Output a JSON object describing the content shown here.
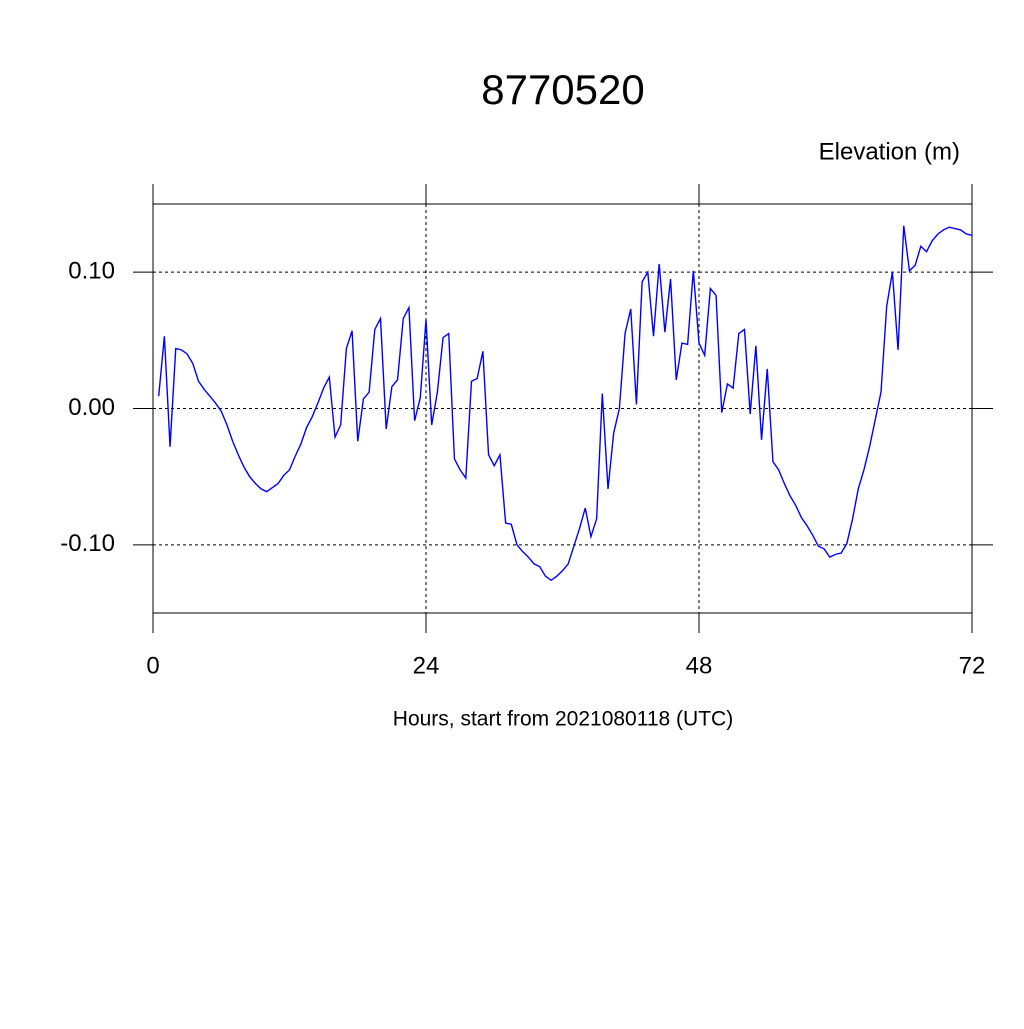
{
  "chart_data": {
    "type": "line",
    "title": "8770520",
    "y_label": "Elevation (m)",
    "x_label": "Hours, start from 2021080118 (UTC)",
    "xlim": [
      0,
      72
    ],
    "xticks": [
      0,
      24,
      48,
      72
    ],
    "ylim": [
      -0.15,
      0.15
    ],
    "yticks": [
      {
        "value": -0.1,
        "label": "-0.10"
      },
      {
        "value": 0,
        "label": "0.00"
      },
      {
        "value": 0.1,
        "label": "0.10"
      }
    ],
    "grid": true,
    "x": [
      0.5,
      1,
      1.5,
      2,
      2.5,
      3,
      3.5,
      4,
      4.5,
      5,
      5.5,
      6,
      6.5,
      7,
      7.5,
      8,
      8.5,
      9,
      9.5,
      10,
      10.5,
      11,
      11.5,
      12,
      12.5,
      13,
      13.5,
      14,
      14.5,
      15,
      15.5,
      16,
      16.5,
      17,
      17.5,
      18,
      18.5,
      19,
      19.5,
      20,
      20.5,
      21,
      21.5,
      22,
      22.5,
      23,
      23.5,
      24,
      24.5,
      25,
      25.5,
      26,
      26.5,
      27,
      27.5,
      28,
      28.5,
      29,
      29.5,
      30,
      30.5,
      31,
      31.5,
      32,
      32.5,
      33,
      33.5,
      34,
      34.5,
      35,
      35.5,
      36,
      36.5,
      37,
      37.5,
      38,
      38.5,
      39,
      39.5,
      40,
      40.5,
      41,
      41.5,
      42,
      42.5,
      43,
      43.5,
      44,
      44.5,
      45,
      45.5,
      46,
      46.5,
      47,
      47.5,
      48,
      48.5,
      49,
      49.5,
      50,
      50.5,
      51,
      51.5,
      52,
      52.5,
      53,
      53.5,
      54,
      54.5,
      55,
      55.5,
      56,
      56.5,
      57,
      57.5,
      58,
      58.5,
      59,
      59.5,
      60,
      60.5,
      61,
      61.5,
      62,
      62.5,
      63,
      63.5,
      64,
      64.5,
      65,
      65.5,
      66,
      66.5,
      67,
      67.5,
      68,
      68.5,
      69,
      69.5,
      70,
      70.5,
      71,
      71.5,
      72
    ],
    "series": [
      {
        "color": "#0000ff",
        "values": [
          0.009,
          0.053,
          -0.028,
          0.044,
          0.043,
          0.04,
          0.033,
          0.02,
          0.014,
          0.009,
          0.004,
          -0.002,
          -0.012,
          -0.024,
          -0.034,
          -0.043,
          -0.05,
          -0.055,
          -0.059,
          -0.061,
          -0.058,
          -0.055,
          -0.049,
          -0.045,
          -0.035,
          -0.026,
          -0.014,
          -0.006,
          0.004,
          0.015,
          0.023,
          -0.021,
          -0.012,
          0.044,
          0.057,
          -0.024,
          0.007,
          0.012,
          0.058,
          0.066,
          -0.015,
          0.016,
          0.021,
          0.066,
          0.074,
          -0.009,
          0.008,
          0.065,
          -0.012,
          0.012,
          0.052,
          0.055,
          -0.037,
          -0.045,
          -0.051,
          0.02,
          0.022,
          0.042,
          -0.034,
          -0.042,
          -0.034,
          -0.084,
          -0.085,
          -0.1,
          -0.105,
          -0.109,
          -0.114,
          -0.116,
          -0.123,
          -0.126,
          -0.123,
          -0.119,
          -0.114,
          -0.101,
          -0.088,
          -0.073,
          -0.094,
          -0.081,
          0.011,
          -0.059,
          -0.018,
          0.0,
          0.055,
          0.073,
          0.003,
          0.093,
          0.1,
          0.053,
          0.106,
          0.056,
          0.095,
          0.021,
          0.048,
          0.047,
          0.101,
          0.048,
          0.039,
          0.088,
          0.083,
          -0.003,
          0.018,
          0.015,
          0.055,
          0.058,
          -0.004,
          0.046,
          -0.023,
          0.029,
          -0.039,
          -0.045,
          -0.055,
          -0.064,
          -0.071,
          -0.08,
          -0.086,
          -0.093,
          -0.101,
          -0.103,
          -0.109,
          -0.107,
          -0.106,
          -0.099,
          -0.081,
          -0.059,
          -0.045,
          -0.028,
          -0.008,
          0.012,
          0.075,
          0.1,
          0.043,
          0.134,
          0.101,
          0.105,
          0.119,
          0.115,
          0.123,
          0.128,
          0.131,
          0.133,
          0.132,
          0.131,
          0.128,
          0.127
        ]
      }
    ]
  }
}
